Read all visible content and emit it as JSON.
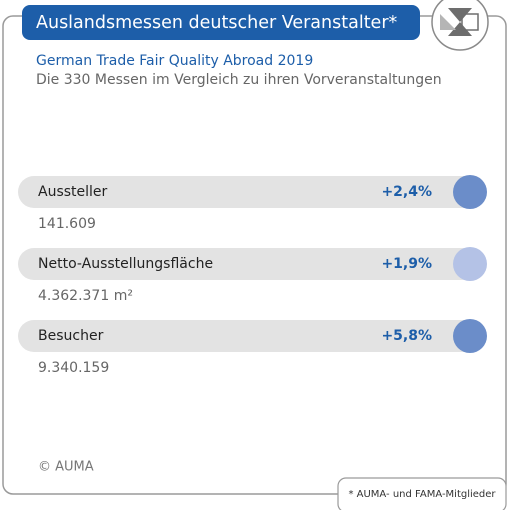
{
  "header": {
    "title": "Auslandsmessen deutscher Veranstalter*",
    "subtitle": "German Trade Fair Quality Abroad 2019",
    "description": "Die 330 Messen im Vergleich zu ihren Vorveranstaltungen"
  },
  "rows": [
    {
      "label": "Aussteller",
      "change": "+2,4%",
      "total": "141.609"
    },
    {
      "label": "Netto-Ausstellungsfläche",
      "change": "+1,9%",
      "total": "4.362.371 m²"
    },
    {
      "label": "Besucher",
      "change": "+5,8%",
      "total": "9.340.159"
    }
  ],
  "footer": {
    "copyright": "© AUMA",
    "note": "* AUMA- und FAMA-Mitglieder"
  }
}
